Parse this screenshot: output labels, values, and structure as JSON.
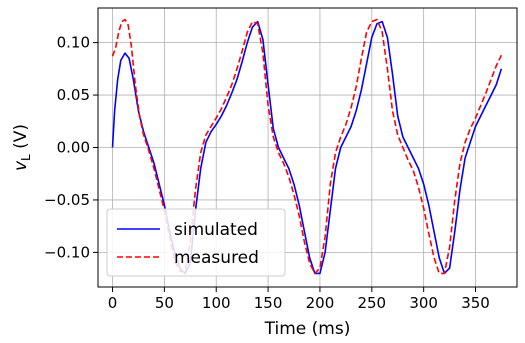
{
  "chart_data": {
    "type": "line",
    "xlabel": "Time (ms)",
    "ylabel_main": "v",
    "ylabel_sub": "L",
    "ylabel_unit": " (V)",
    "xlim": [
      -14,
      390
    ],
    "ylim": [
      -0.133,
      0.133
    ],
    "xticks": [
      0,
      50,
      100,
      150,
      200,
      250,
      300,
      350
    ],
    "yticks": [
      -0.1,
      -0.05,
      0.0,
      0.05,
      0.1
    ],
    "ytick_labels": [
      "−0.10",
      "−0.05",
      "0.00",
      "0.05",
      "0.10"
    ],
    "grid": true,
    "legend_position": "lower-left",
    "series": [
      {
        "name": "simulated",
        "color": "#0000ff",
        "style": "solid",
        "x": [
          0,
          2,
          5,
          8,
          12,
          16,
          20,
          25,
          30,
          35,
          40,
          45,
          50,
          55,
          60,
          65,
          70,
          75,
          80,
          85,
          90,
          95,
          100,
          105,
          110,
          115,
          120,
          125,
          130,
          135,
          140,
          145,
          150,
          155,
          160,
          165,
          170,
          175,
          180,
          185,
          190,
          195,
          200,
          205,
          210,
          215,
          220,
          225,
          230,
          235,
          240,
          245,
          250,
          255,
          260,
          265,
          270,
          275,
          280,
          285,
          290,
          295,
          300,
          305,
          310,
          315,
          320,
          325,
          330,
          335,
          340,
          345,
          350,
          355,
          360,
          365,
          370,
          375
        ],
        "y": [
          0.0,
          0.035,
          0.065,
          0.083,
          0.09,
          0.085,
          0.065,
          0.035,
          0.015,
          0.0,
          -0.015,
          -0.035,
          -0.055,
          -0.08,
          -0.1,
          -0.115,
          -0.12,
          -0.11,
          -0.06,
          -0.02,
          0.005,
          0.015,
          0.022,
          0.03,
          0.04,
          0.052,
          0.065,
          0.082,
          0.1,
          0.115,
          0.12,
          0.103,
          0.06,
          0.018,
          0.0,
          -0.01,
          -0.02,
          -0.035,
          -0.055,
          -0.08,
          -0.105,
          -0.12,
          -0.12,
          -0.1,
          -0.06,
          -0.02,
          0.0,
          0.01,
          0.02,
          0.035,
          0.055,
          0.08,
          0.105,
          0.118,
          0.12,
          0.105,
          0.07,
          0.03,
          0.01,
          0.0,
          -0.01,
          -0.02,
          -0.035,
          -0.055,
          -0.08,
          -0.105,
          -0.12,
          -0.115,
          -0.08,
          -0.04,
          -0.01,
          0.005,
          0.02,
          0.03,
          0.04,
          0.05,
          0.06,
          0.075
        ]
      },
      {
        "name": "measured",
        "color": "#ff0000",
        "style": "dashed",
        "x": [
          0,
          3,
          6,
          9,
          12,
          15,
          18,
          22,
          26,
          30,
          35,
          40,
          45,
          50,
          55,
          60,
          65,
          70,
          75,
          80,
          85,
          90,
          95,
          100,
          105,
          110,
          115,
          120,
          125,
          130,
          135,
          140,
          145,
          150,
          155,
          160,
          165,
          170,
          175,
          180,
          185,
          190,
          195,
          200,
          205,
          210,
          215,
          220,
          225,
          230,
          235,
          240,
          245,
          250,
          255,
          260,
          265,
          270,
          275,
          280,
          285,
          290,
          295,
          300,
          305,
          310,
          315,
          320,
          325,
          330,
          335,
          340,
          345,
          350,
          355,
          360,
          365,
          370,
          375
        ],
        "y": [
          0.087,
          0.095,
          0.11,
          0.12,
          0.122,
          0.117,
          0.098,
          0.06,
          0.03,
          0.012,
          -0.003,
          -0.02,
          -0.04,
          -0.06,
          -0.085,
          -0.108,
          -0.118,
          -0.118,
          -0.09,
          -0.04,
          -0.005,
          0.012,
          0.02,
          0.028,
          0.037,
          0.048,
          0.06,
          0.075,
          0.092,
          0.11,
          0.12,
          0.118,
          0.09,
          0.04,
          0.01,
          -0.005,
          -0.015,
          -0.028,
          -0.045,
          -0.065,
          -0.09,
          -0.11,
          -0.12,
          -0.115,
          -0.085,
          -0.035,
          -0.005,
          0.01,
          0.022,
          0.038,
          0.058,
          0.085,
          0.11,
          0.12,
          0.122,
          0.11,
          0.075,
          0.035,
          0.012,
          0.0,
          -0.012,
          -0.022,
          -0.038,
          -0.058,
          -0.082,
          -0.105,
          -0.12,
          -0.12,
          -0.095,
          -0.05,
          -0.015,
          0.005,
          0.018,
          0.028,
          0.04,
          0.052,
          0.065,
          0.078,
          0.088
        ]
      }
    ]
  }
}
